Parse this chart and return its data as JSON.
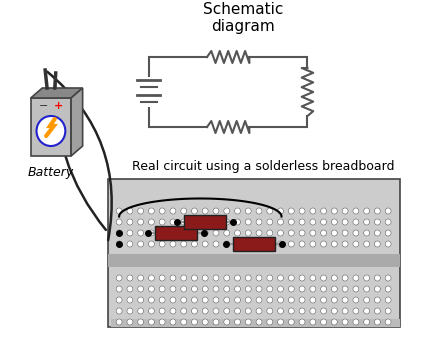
{
  "title_schematic": "Schematic\ndiagram",
  "title_real": "Real circuit using a solderless breadboard",
  "battery_label": "Battery",
  "bg_color": "#ffffff",
  "wire_color": "#555555",
  "breadboard_color": "#cccccc",
  "breadboard_sep_color": "#aaaaaa",
  "resistor_color": "#8b1a1a",
  "hole_color": "#ffffff",
  "hole_edge": "#888888"
}
